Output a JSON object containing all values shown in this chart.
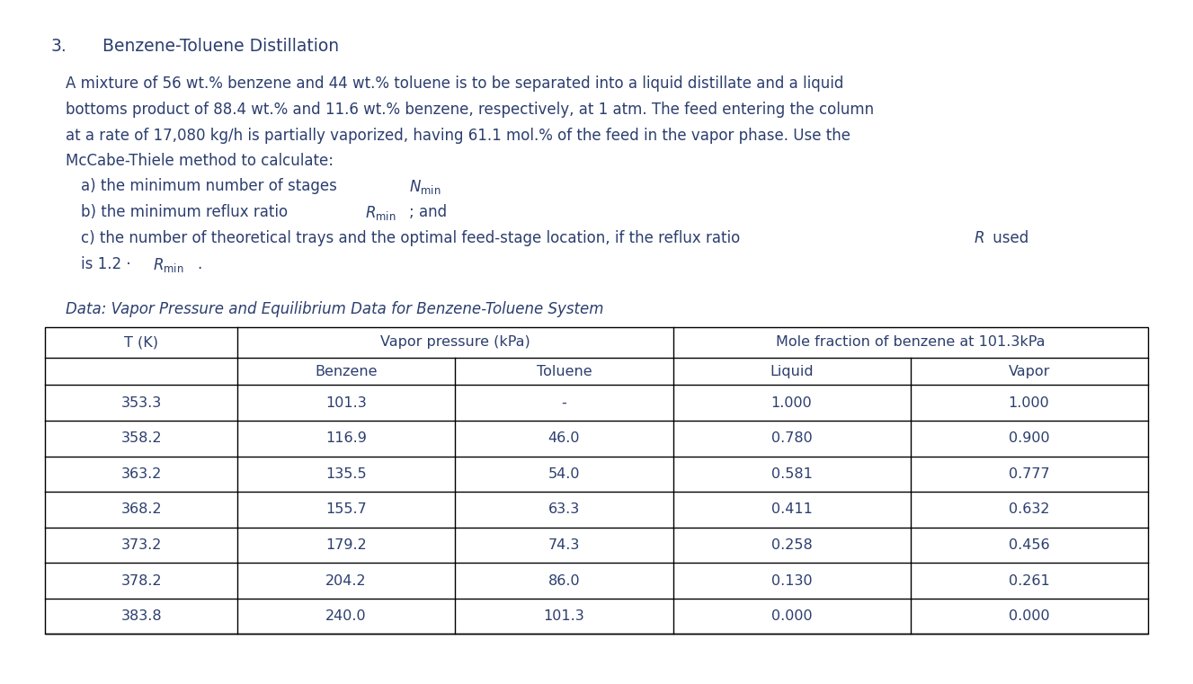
{
  "title_number": "3.",
  "title_text": "Benzene-Toluene Distillation",
  "para_line1": "A mixture of 56 wt.% benzene and 44 wt.% toluene is to be separated into a liquid distillate and a liquid",
  "para_line2": "bottoms product of 88.4 wt.% and 11.6 wt.% benzene, respectively, at 1 atm. The feed entering the column",
  "para_line3": "at a rate of 17,080 kg/h is partially vaporized, having 61.1 mol.% of the feed in the vapor phase. Use the",
  "para_line4": "McCabe-Thiele method to calculate:",
  "item_a_pre": "a) the minimum number of stages ",
  "item_a_math": "$N_{\\mathrm{min}}$",
  "item_b_pre": "b) the minimum reflux ratio ",
  "item_b_math": "$R_{\\mathrm{min}}$",
  "item_b_suf": "; and",
  "item_c_pre": "c) the number of theoretical trays and the optimal feed-stage location, if the reflux ratio ",
  "item_c_math": "$R$",
  "item_c_suf": " used",
  "item_c2_pre": "is 1.2 · ",
  "item_c2_math": "$R_{\\mathrm{min}}$",
  "item_c2_suf": ".",
  "data_label": "Data: Vapor Pressure and Equilibrium Data for Benzene-Toluene System",
  "table_rows": [
    [
      "353.3",
      "101.3",
      "-",
      "1.000",
      "1.000"
    ],
    [
      "358.2",
      "116.9",
      "46.0",
      "0.780",
      "0.900"
    ],
    [
      "363.2",
      "135.5",
      "54.0",
      "0.581",
      "0.777"
    ],
    [
      "368.2",
      "155.7",
      "63.3",
      "0.411",
      "0.632"
    ],
    [
      "373.2",
      "179.2",
      "74.3",
      "0.258",
      "0.456"
    ],
    [
      "378.2",
      "204.2",
      "86.0",
      "0.130",
      "0.261"
    ],
    [
      "383.8",
      "240.0",
      "101.3",
      "0.000",
      "0.000"
    ]
  ],
  "text_color": "#2c3e6e",
  "bg_color": "#ffffff",
  "fs_title": 13.5,
  "fs_body": 12.0,
  "fs_table": 11.5,
  "fs_data_label": 12.0
}
